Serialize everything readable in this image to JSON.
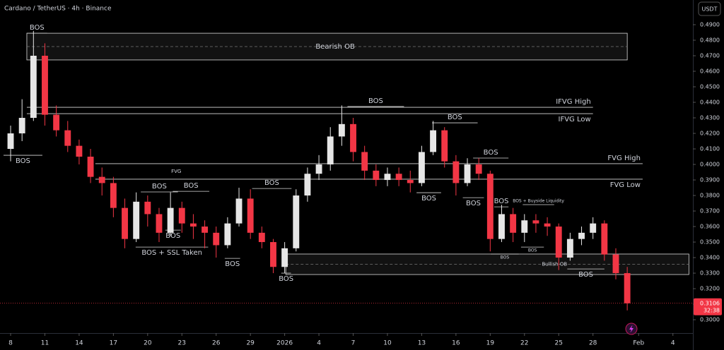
{
  "header": {
    "symbol": "Cardano / TetherUS · 4h · Binance",
    "currency": "USDT"
  },
  "chart_data": {
    "type": "candlestick",
    "x": [
      0,
      1,
      2,
      3,
      4,
      5,
      6,
      7,
      8,
      9,
      10,
      11,
      12,
      13,
      14,
      15,
      16,
      17,
      18,
      19,
      20,
      21,
      22,
      23,
      24,
      25,
      26,
      27,
      28,
      29,
      30,
      31,
      32,
      33,
      34,
      35,
      36,
      37,
      38,
      39,
      40,
      41,
      42,
      43,
      44,
      45,
      46,
      47,
      48,
      49,
      50,
      51,
      52,
      53,
      54
    ],
    "open": [
      0.41,
      0.42,
      0.43,
      0.47,
      0.432,
      0.422,
      0.412,
      0.405,
      0.392,
      0.388,
      0.372,
      0.352,
      0.376,
      0.368,
      0.356,
      0.372,
      0.362,
      0.36,
      0.356,
      0.348,
      0.362,
      0.378,
      0.356,
      0.35,
      0.334,
      0.346,
      0.38,
      0.394,
      0.4,
      0.418,
      0.426,
      0.408,
      0.396,
      0.39,
      0.394,
      0.39,
      0.388,
      0.408,
      0.422,
      0.402,
      0.388,
      0.4,
      0.394,
      0.352,
      0.368,
      0.356,
      0.364,
      0.362,
      0.36,
      0.34,
      0.352,
      0.356,
      0.362,
      0.342,
      0.33
    ],
    "high": [
      0.425,
      0.442,
      0.486,
      0.478,
      0.438,
      0.428,
      0.416,
      0.41,
      0.398,
      0.392,
      0.378,
      0.382,
      0.38,
      0.372,
      0.382,
      0.376,
      0.368,
      0.364,
      0.36,
      0.366,
      0.385,
      0.384,
      0.36,
      0.352,
      0.35,
      0.384,
      0.398,
      0.406,
      0.424,
      0.438,
      0.43,
      0.412,
      0.4,
      0.398,
      0.398,
      0.396,
      0.412,
      0.428,
      0.424,
      0.406,
      0.404,
      0.404,
      0.396,
      0.374,
      0.372,
      0.368,
      0.368,
      0.366,
      0.362,
      0.356,
      0.36,
      0.366,
      0.364,
      0.346,
      0.334
    ],
    "low": [
      0.402,
      0.415,
      0.428,
      0.425,
      0.418,
      0.408,
      0.4,
      0.388,
      0.38,
      0.366,
      0.346,
      0.35,
      0.36,
      0.35,
      0.354,
      0.356,
      0.352,
      0.346,
      0.34,
      0.346,
      0.36,
      0.352,
      0.346,
      0.33,
      0.33,
      0.344,
      0.376,
      0.39,
      0.396,
      0.412,
      0.402,
      0.39,
      0.386,
      0.386,
      0.386,
      0.382,
      0.386,
      0.406,
      0.398,
      0.38,
      0.386,
      0.39,
      0.344,
      0.35,
      0.35,
      0.35,
      0.356,
      0.354,
      0.332,
      0.338,
      0.348,
      0.352,
      0.338,
      0.326,
      0.306
    ],
    "close": [
      0.42,
      0.43,
      0.47,
      0.432,
      0.422,
      0.412,
      0.405,
      0.392,
      0.388,
      0.372,
      0.352,
      0.376,
      0.368,
      0.356,
      0.372,
      0.362,
      0.36,
      0.356,
      0.348,
      0.362,
      0.378,
      0.356,
      0.35,
      0.334,
      0.346,
      0.38,
      0.394,
      0.4,
      0.418,
      0.426,
      0.408,
      0.396,
      0.39,
      0.394,
      0.39,
      0.388,
      0.408,
      0.422,
      0.402,
      0.388,
      0.4,
      0.394,
      0.352,
      0.368,
      0.356,
      0.364,
      0.362,
      0.36,
      0.34,
      0.352,
      0.356,
      0.362,
      0.342,
      0.33,
      0.3106
    ],
    "up_color": "#e6e6e6",
    "down_color": "#f23645",
    "xlim": [
      -0.93,
      59.75
    ],
    "ylim": [
      0.2914,
      0.5059
    ],
    "yticks": [
      {
        "value": 0.49,
        "label": "0.4900"
      },
      {
        "value": 0.48,
        "label": "0.4800"
      },
      {
        "value": 0.47,
        "label": "0.4700"
      },
      {
        "value": 0.46,
        "label": "0.4600"
      },
      {
        "value": 0.45,
        "label": "0.4500"
      },
      {
        "value": 0.44,
        "label": "0.4400"
      },
      {
        "value": 0.43,
        "label": "0.4300"
      },
      {
        "value": 0.42,
        "label": "0.4200"
      },
      {
        "value": 0.41,
        "label": "0.4100"
      },
      {
        "value": 0.4,
        "label": "0.4000"
      },
      {
        "value": 0.39,
        "label": "0.3900"
      },
      {
        "value": 0.38,
        "label": "0.3800"
      },
      {
        "value": 0.37,
        "label": "0.3700"
      },
      {
        "value": 0.36,
        "label": "0.3600"
      },
      {
        "value": 0.35,
        "label": "0.3500"
      },
      {
        "value": 0.34,
        "label": "0.3400"
      },
      {
        "value": 0.33,
        "label": "0.3300"
      },
      {
        "value": 0.32,
        "label": "0.3200"
      },
      {
        "value": 0.31,
        "label": "0.3100"
      },
      {
        "value": 0.3,
        "label": "0.3000"
      }
    ],
    "xticks": [
      {
        "value": 0,
        "label": "8"
      },
      {
        "value": 3,
        "label": "11"
      },
      {
        "value": 6,
        "label": "14"
      },
      {
        "value": 9,
        "label": "17"
      },
      {
        "value": 12,
        "label": "20"
      },
      {
        "value": 15,
        "label": "23"
      },
      {
        "value": 18,
        "label": "26"
      },
      {
        "value": 21,
        "label": "29"
      },
      {
        "value": 24,
        "label": "2026"
      },
      {
        "value": 27,
        "label": "4"
      },
      {
        "value": 30,
        "label": "7"
      },
      {
        "value": 33,
        "label": "10"
      },
      {
        "value": 36,
        "label": "13"
      },
      {
        "value": 39,
        "label": "16"
      },
      {
        "value": 42,
        "label": "19"
      },
      {
        "value": 45,
        "label": "22"
      },
      {
        "value": 48,
        "label": "25"
      },
      {
        "value": 51,
        "label": "28"
      },
      {
        "value": 55,
        "label": "Feb"
      },
      {
        "value": 58,
        "label": "4"
      }
    ],
    "last_price": 0.3106,
    "countdown": "32:38",
    "zones": [
      {
        "label": "Bearish OB",
        "prices": [
          0.4845,
          0.4673
        ],
        "x": [
          1.42,
          54.0
        ]
      },
      {
        "label": "Bullish OB",
        "prices": [
          0.3423,
          0.3291
        ],
        "x": [
          24.1,
          59.4
        ]
      }
    ],
    "levels": [
      {
        "label": "IFVG High",
        "price": 0.4368,
        "x": [
          1.42,
          51.0
        ]
      },
      {
        "label": "IFVG Low",
        "price": 0.4327,
        "x": [
          1.42,
          51.0
        ]
      },
      {
        "label": "FVG High",
        "price": 0.4005,
        "x": [
          7.42,
          55.35
        ]
      },
      {
        "label": "FVG Low",
        "price": 0.3905,
        "x": [
          7.42,
          55.35
        ]
      }
    ],
    "notes": [
      {
        "label": "FVG",
        "price": 0.3955,
        "x": 14.5
      }
    ],
    "structure": [
      {
        "label": "BOS",
        "price": 0.4059,
        "x": [
          -0.62,
          2.78
        ],
        "pos": "below"
      },
      {
        "label": "BOS",
        "price": 0.4845,
        "x": [
          1.42,
          3.2
        ],
        "pos": "above"
      },
      {
        "label": "BOS",
        "price": 0.4373,
        "x": [
          29.5,
          34.45
        ],
        "pos": "above"
      },
      {
        "label": "BOS",
        "price": 0.4268,
        "x": [
          36.9,
          40.9
        ],
        "pos": "above"
      },
      {
        "label": "BOS",
        "price": 0.4041,
        "x": [
          40.5,
          43.6
        ],
        "pos": "above"
      },
      {
        "label": "BOS",
        "price": 0.3823,
        "x": [
          11.4,
          14.65
        ],
        "pos": "above"
      },
      {
        "label": "BOS",
        "price": 0.3827,
        "x": [
          14.2,
          17.4
        ],
        "pos": "above"
      },
      {
        "label": "BOS",
        "price": 0.3845,
        "x": [
          21.15,
          24.6
        ],
        "pos": "above"
      },
      {
        "label": "BOS + SSL Taken",
        "price": 0.3468,
        "x": [
          10.95,
          17.3
        ],
        "pos": "below"
      },
      {
        "label": "BOS",
        "price": 0.3577,
        "x": [
          13.55,
          14.9
        ],
        "pos": "below"
      },
      {
        "label": "BOS",
        "price": 0.3395,
        "x": [
          18.75,
          20.1
        ],
        "pos": "below"
      },
      {
        "label": "BOS",
        "price": 0.33,
        "x": [
          23.7,
          24.55
        ],
        "pos": "below"
      },
      {
        "label": "BOS",
        "price": 0.3818,
        "x": [
          35.55,
          37.7
        ],
        "pos": "below"
      },
      {
        "label": "BOS",
        "price": 0.3786,
        "x": [
          39.6,
          41.45
        ],
        "pos": "below"
      },
      {
        "label": "BOS",
        "price": 0.3727,
        "x": [
          42.35,
          43.6
        ],
        "pos": "above"
      },
      {
        "label": "BOS + Buyside Liquidity",
        "price": 0.3741,
        "x": [
          44.85,
          47.6
        ],
        "pos": "above",
        "small": true
      },
      {
        "label": "BOS",
        "price": 0.3468,
        "x": [
          44.7,
          46.7
        ],
        "pos": "below",
        "small": true
      },
      {
        "label": "BOS",
        "price": 0.3423,
        "x": [
          42.05,
          44.5
        ],
        "pos": "below",
        "small": true
      },
      {
        "label": "BOS",
        "price": 0.3327,
        "x": [
          48.75,
          52.0
        ],
        "pos": "below"
      }
    ]
  }
}
